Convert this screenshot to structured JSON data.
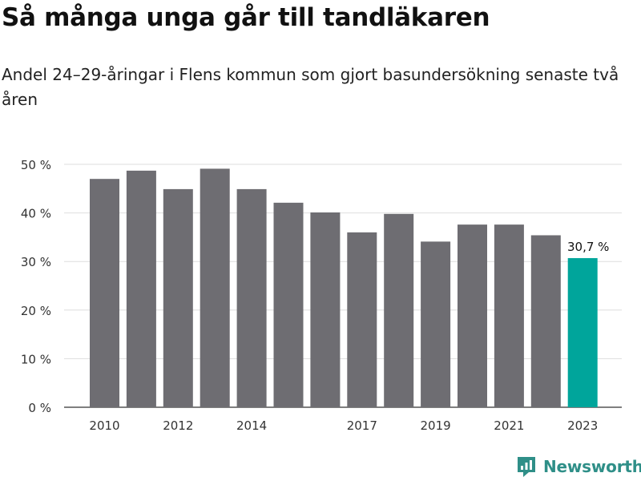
{
  "title": "Så många unga går till tandläkaren",
  "subtitle": "Andel 24–29-åringar i Flens kommun som gjort basundersökning senaste två åren",
  "brand": {
    "label": "Newsworthy",
    "icon": "newsworthy-logo-icon",
    "color": "#2f8f88"
  },
  "chart_data": {
    "type": "bar",
    "categories": [
      "2010",
      "2011",
      "2012",
      "2013",
      "2014",
      "2015",
      "2016",
      "2017",
      "2018",
      "2019",
      "2020",
      "2021",
      "2022",
      "2023"
    ],
    "values": [
      47.0,
      48.7,
      44.9,
      49.1,
      44.9,
      42.1,
      40.1,
      36.0,
      39.8,
      34.1,
      37.6,
      37.6,
      35.4,
      30.7
    ],
    "x_tick_labels": [
      "2010",
      "2012",
      "2014",
      "2017",
      "2019",
      "2021",
      "2023"
    ],
    "y_ticks": [
      0,
      10,
      20,
      30,
      40,
      50
    ],
    "y_tick_labels": [
      "0 %",
      "10 %",
      "20 %",
      "30 %",
      "40 %",
      "50 %"
    ],
    "ylim": [
      0,
      50
    ],
    "grid": true,
    "colors": {
      "bar": "#6e6d72",
      "highlight": "#00a59b",
      "grid": "#dedede"
    },
    "annotation": {
      "category": "2023",
      "label": "30,7 %"
    }
  }
}
